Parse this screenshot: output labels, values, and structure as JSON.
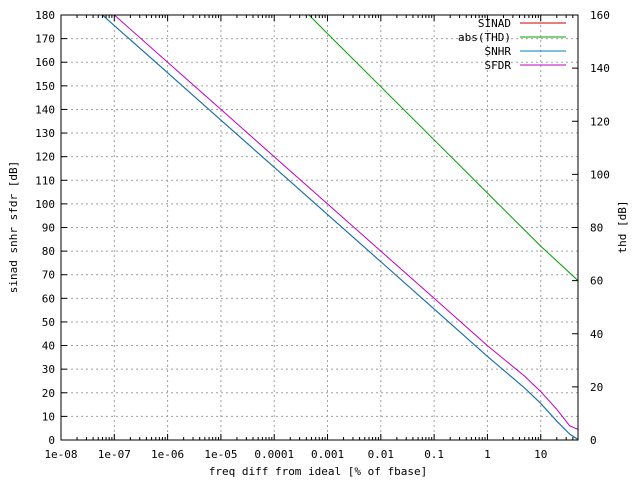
{
  "chart_data": {
    "type": "line",
    "title": "",
    "xlabel": "freq diff from ideal [% of fbase]",
    "ylabel": "sinad snhr sfdr [dB]",
    "y2label": "thd [dB]",
    "xscale": "log",
    "xlim": [
      1e-08,
      50
    ],
    "ylim": [
      0,
      180
    ],
    "y2lim": [
      0,
      160
    ],
    "grid": true,
    "legend_position": "top-right",
    "x_ticks": [
      {
        "value": 1e-08,
        "label": "1e-08"
      },
      {
        "value": 1e-07,
        "label": "1e-07"
      },
      {
        "value": 1e-06,
        "label": "1e-06"
      },
      {
        "value": 1e-05,
        "label": "1e-05"
      },
      {
        "value": 0.0001,
        "label": "0.0001"
      },
      {
        "value": 0.001,
        "label": "0.001"
      },
      {
        "value": 0.01,
        "label": "0.01"
      },
      {
        "value": 0.1,
        "label": "0.1"
      },
      {
        "value": 1,
        "label": "1"
      },
      {
        "value": 10,
        "label": "10"
      }
    ],
    "y_ticks": [
      0,
      10,
      20,
      30,
      40,
      50,
      60,
      70,
      80,
      90,
      100,
      110,
      120,
      130,
      140,
      150,
      160,
      170,
      180
    ],
    "y2_ticks": [
      0,
      20,
      40,
      60,
      80,
      100,
      120,
      140,
      160
    ],
    "series": [
      {
        "name": "SINAD",
        "color": "#c00000",
        "axis": "y1",
        "points": [
          [
            6e-08,
            180
          ],
          [
            1e-07,
            175.5
          ],
          [
            1e-06,
            155.5
          ],
          [
            1e-05,
            135.5
          ],
          [
            0.0001,
            115.5
          ],
          [
            0.001,
            95.5
          ],
          [
            0.01,
            75.5
          ],
          [
            0.1,
            55.5
          ],
          [
            1,
            35.4
          ],
          [
            5,
            22
          ],
          [
            10,
            15.5
          ],
          [
            20,
            8
          ],
          [
            35,
            2.5
          ],
          [
            50,
            0.2
          ]
        ]
      },
      {
        "name": "abs(THD)",
        "color": "#00a000",
        "axis": "y2",
        "points": [
          [
            0.00045,
            160
          ],
          [
            0.001,
            153
          ],
          [
            0.01,
            133
          ],
          [
            0.1,
            113
          ],
          [
            1,
            93
          ],
          [
            10,
            73
          ],
          [
            50,
            60
          ]
        ]
      },
      {
        "name": "SNHR",
        "color": "#0080c0",
        "axis": "y1",
        "points": [
          [
            6e-08,
            180
          ],
          [
            1e-07,
            175.5
          ],
          [
            1e-06,
            155.5
          ],
          [
            1e-05,
            135.5
          ],
          [
            0.0001,
            115.5
          ],
          [
            0.001,
            95.5
          ],
          [
            0.01,
            75.5
          ],
          [
            0.1,
            55.5
          ],
          [
            1,
            35.4
          ],
          [
            5,
            22
          ],
          [
            10,
            15.5
          ],
          [
            20,
            8
          ],
          [
            35,
            2.5
          ],
          [
            50,
            0.2
          ]
        ]
      },
      {
        "name": "SFDR",
        "color": "#c000c0",
        "axis": "y1",
        "points": [
          [
            1e-07,
            180
          ],
          [
            1e-06,
            160
          ],
          [
            1e-05,
            140
          ],
          [
            0.0001,
            120
          ],
          [
            0.001,
            100
          ],
          [
            0.01,
            80
          ],
          [
            0.1,
            60
          ],
          [
            1,
            40
          ],
          [
            5,
            27
          ],
          [
            10,
            20.5
          ],
          [
            20,
            13
          ],
          [
            35,
            6
          ],
          [
            50,
            4.5
          ]
        ]
      }
    ]
  }
}
